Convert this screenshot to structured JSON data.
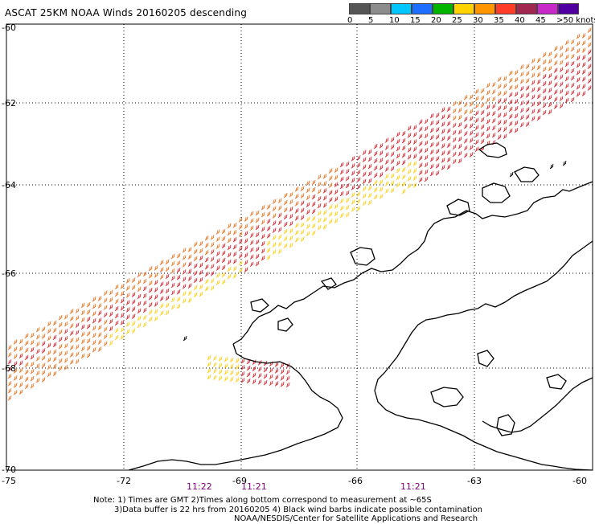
{
  "title": "ASCAT 25KM NOAA Winds 20160205 descending",
  "legend": {
    "labels": [
      "0",
      "5",
      "10",
      "15",
      "20",
      "25",
      "30",
      "35",
      "40",
      "45",
      ">50 knots"
    ],
    "colors": [
      "#555555",
      "#8c8c8c",
      "#00c8ff",
      "#1e6eff",
      "#00b400",
      "#ffd200",
      "#ff9600",
      "#ff3c28",
      "#a02850",
      "#c828c8",
      "#5000a0"
    ]
  },
  "map": {
    "latitudes": [
      "-60",
      "-62",
      "-64",
      "-66",
      "-68",
      "-70"
    ],
    "longitudes": [
      "-75",
      "-72",
      "-69",
      "-66",
      "-63",
      "-60"
    ],
    "times": [
      "11:22",
      "11:21",
      "11:21"
    ]
  },
  "wind_barb_colors": {
    "strong": "#e0303a",
    "moderate": "#f07828",
    "weak": "#ffd21e",
    "contaminated": "#000000"
  },
  "notes": {
    "line1": "Note: 1) Times are GMT 2)Times along bottom correspond to measurement at ~65S",
    "line2": "3)Data buffer is 22 hrs from 20160205 4) Black wind barbs indicate possible contamination",
    "line3": "NOAA/NESDIS/Center for Satellite Applications and Research"
  }
}
